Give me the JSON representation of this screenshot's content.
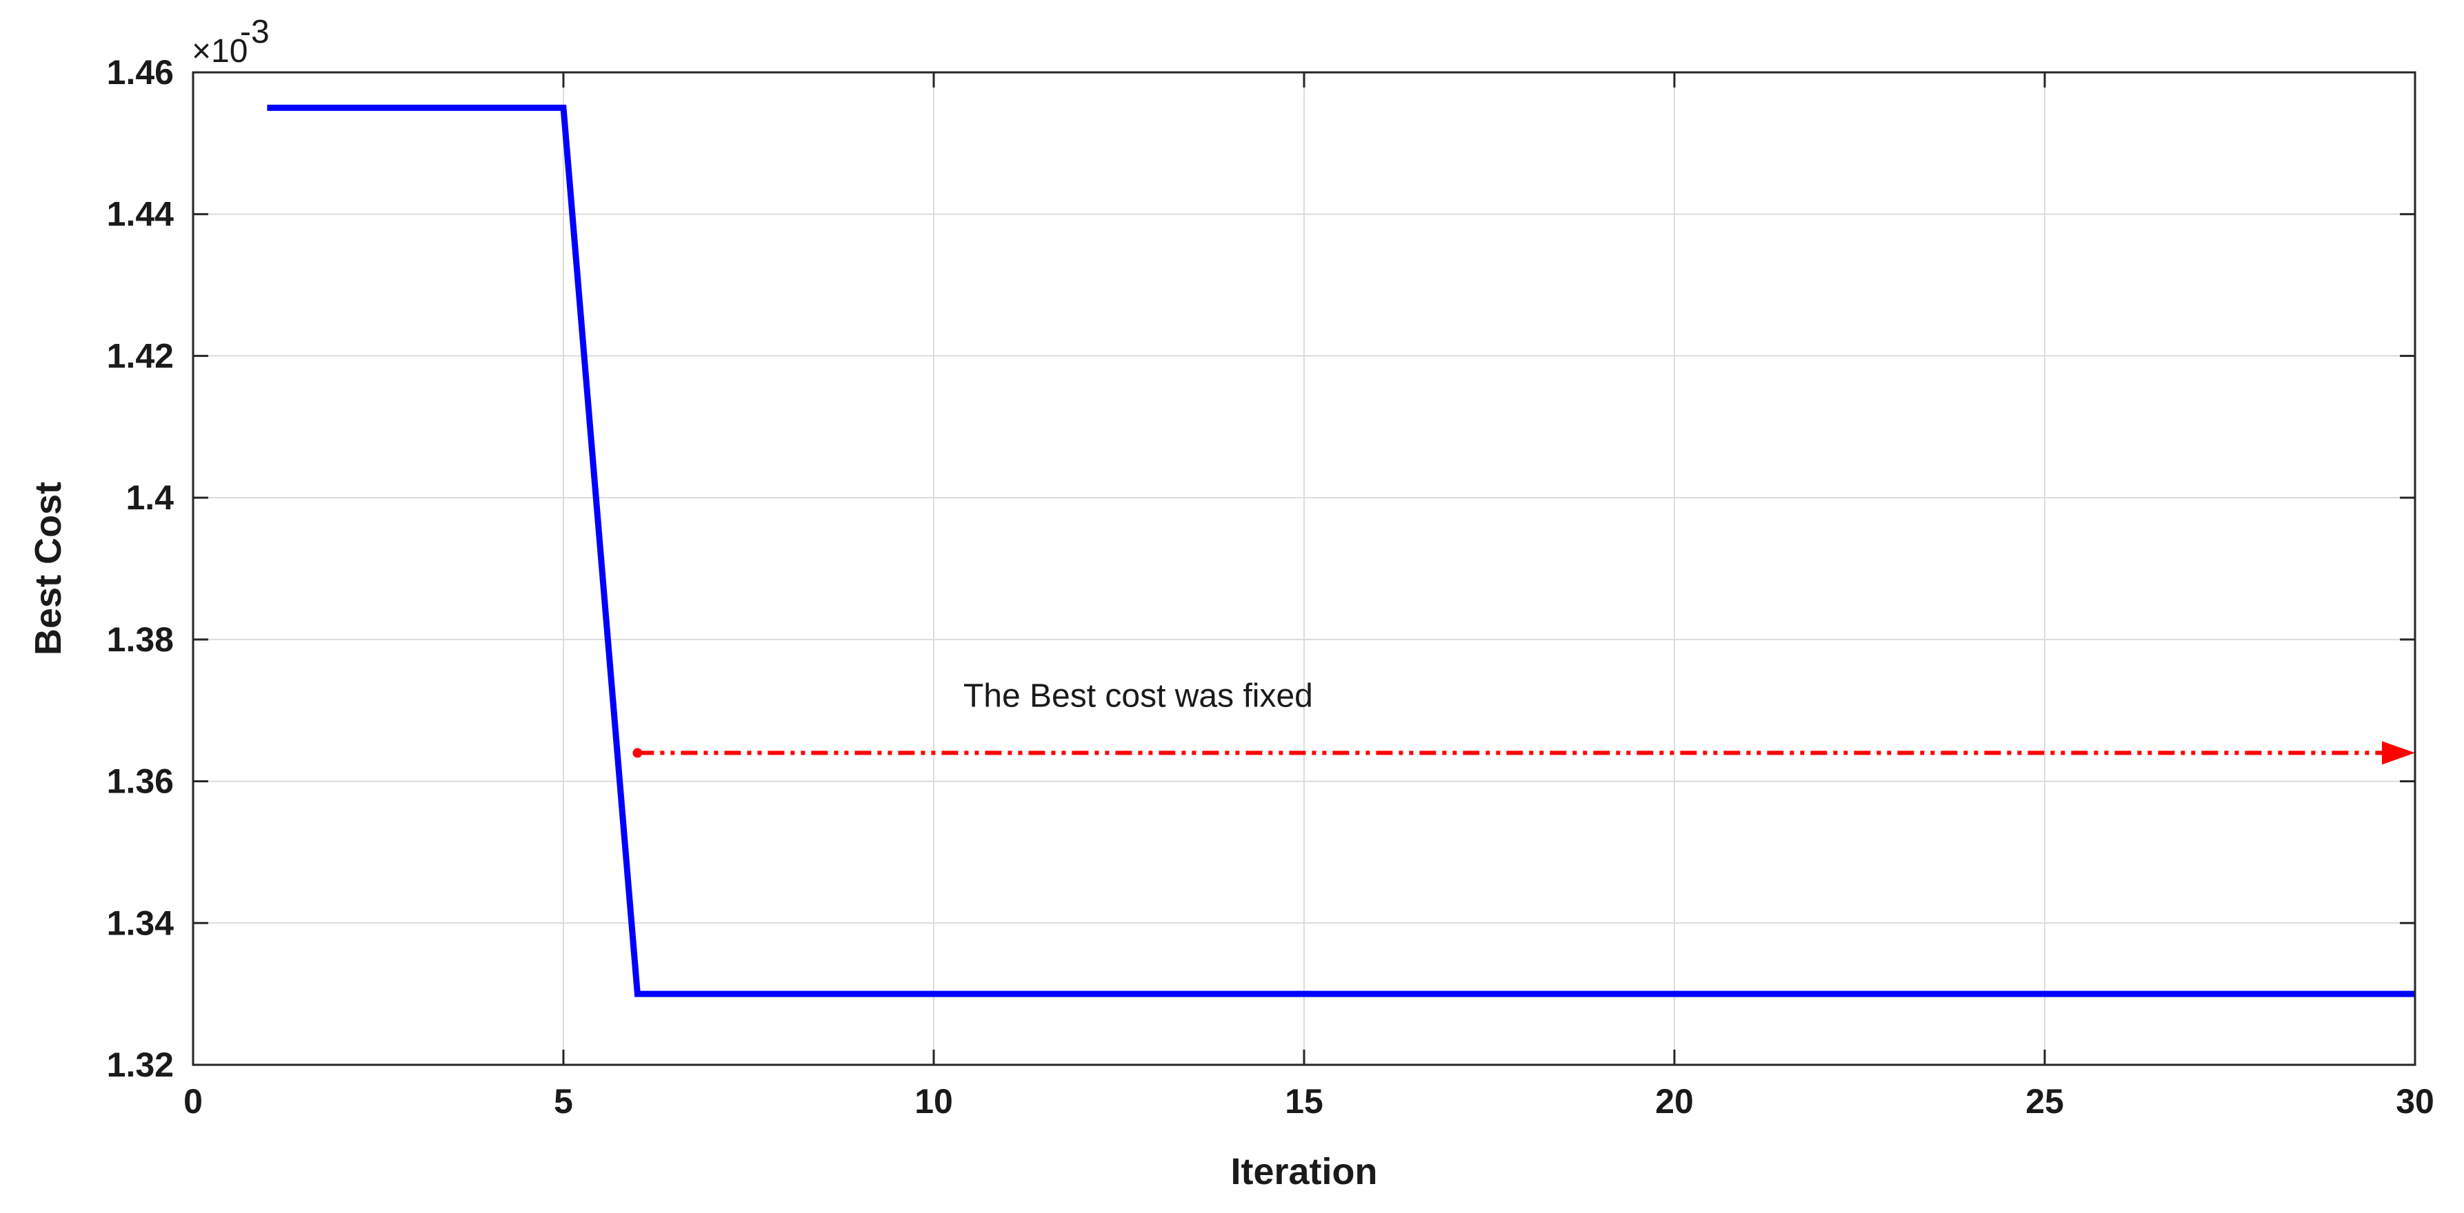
{
  "chart_data": {
    "type": "line",
    "title": "",
    "xlabel": "Iteration",
    "ylabel": "Best Cost",
    "y_exponent_label": "×10",
    "y_exponent_power": "-3",
    "xlim": [
      0,
      30
    ],
    "ylim": [
      1.32,
      1.46
    ],
    "x_ticks": [
      0,
      5,
      10,
      15,
      20,
      25,
      30
    ],
    "x_tick_labels": [
      "0",
      "5",
      "10",
      "15",
      "20",
      "25",
      "30"
    ],
    "y_ticks": [
      1.32,
      1.34,
      1.36,
      1.38,
      1.4,
      1.42,
      1.44,
      1.46
    ],
    "y_tick_labels": [
      "1.32",
      "1.34",
      "1.36",
      "1.38",
      "1.4",
      "1.42",
      "1.44",
      "1.46"
    ],
    "grid": true,
    "series": [
      {
        "color": "#0000ff",
        "x": [
          1,
          2,
          3,
          4,
          5,
          6,
          7,
          8,
          9,
          10,
          11,
          12,
          13,
          14,
          15,
          16,
          17,
          18,
          19,
          20,
          21,
          22,
          23,
          24,
          25,
          26,
          27,
          28,
          29,
          30
        ],
        "y": [
          1.455,
          1.455,
          1.455,
          1.455,
          1.455,
          1.33,
          1.33,
          1.33,
          1.33,
          1.33,
          1.33,
          1.33,
          1.33,
          1.33,
          1.33,
          1.33,
          1.33,
          1.33,
          1.33,
          1.33,
          1.33,
          1.33,
          1.33,
          1.33,
          1.33,
          1.33,
          1.33,
          1.33,
          1.33,
          1.33
        ]
      }
    ],
    "annotations": [
      {
        "text": "The Best cost was fixed",
        "arrow_color": "#ff0000",
        "arrow_from": [
          6,
          1.364
        ],
        "arrow_to": [
          30,
          1.364
        ],
        "text_anchor_x": 10.4,
        "text_anchor_y": 1.3705
      }
    ]
  }
}
